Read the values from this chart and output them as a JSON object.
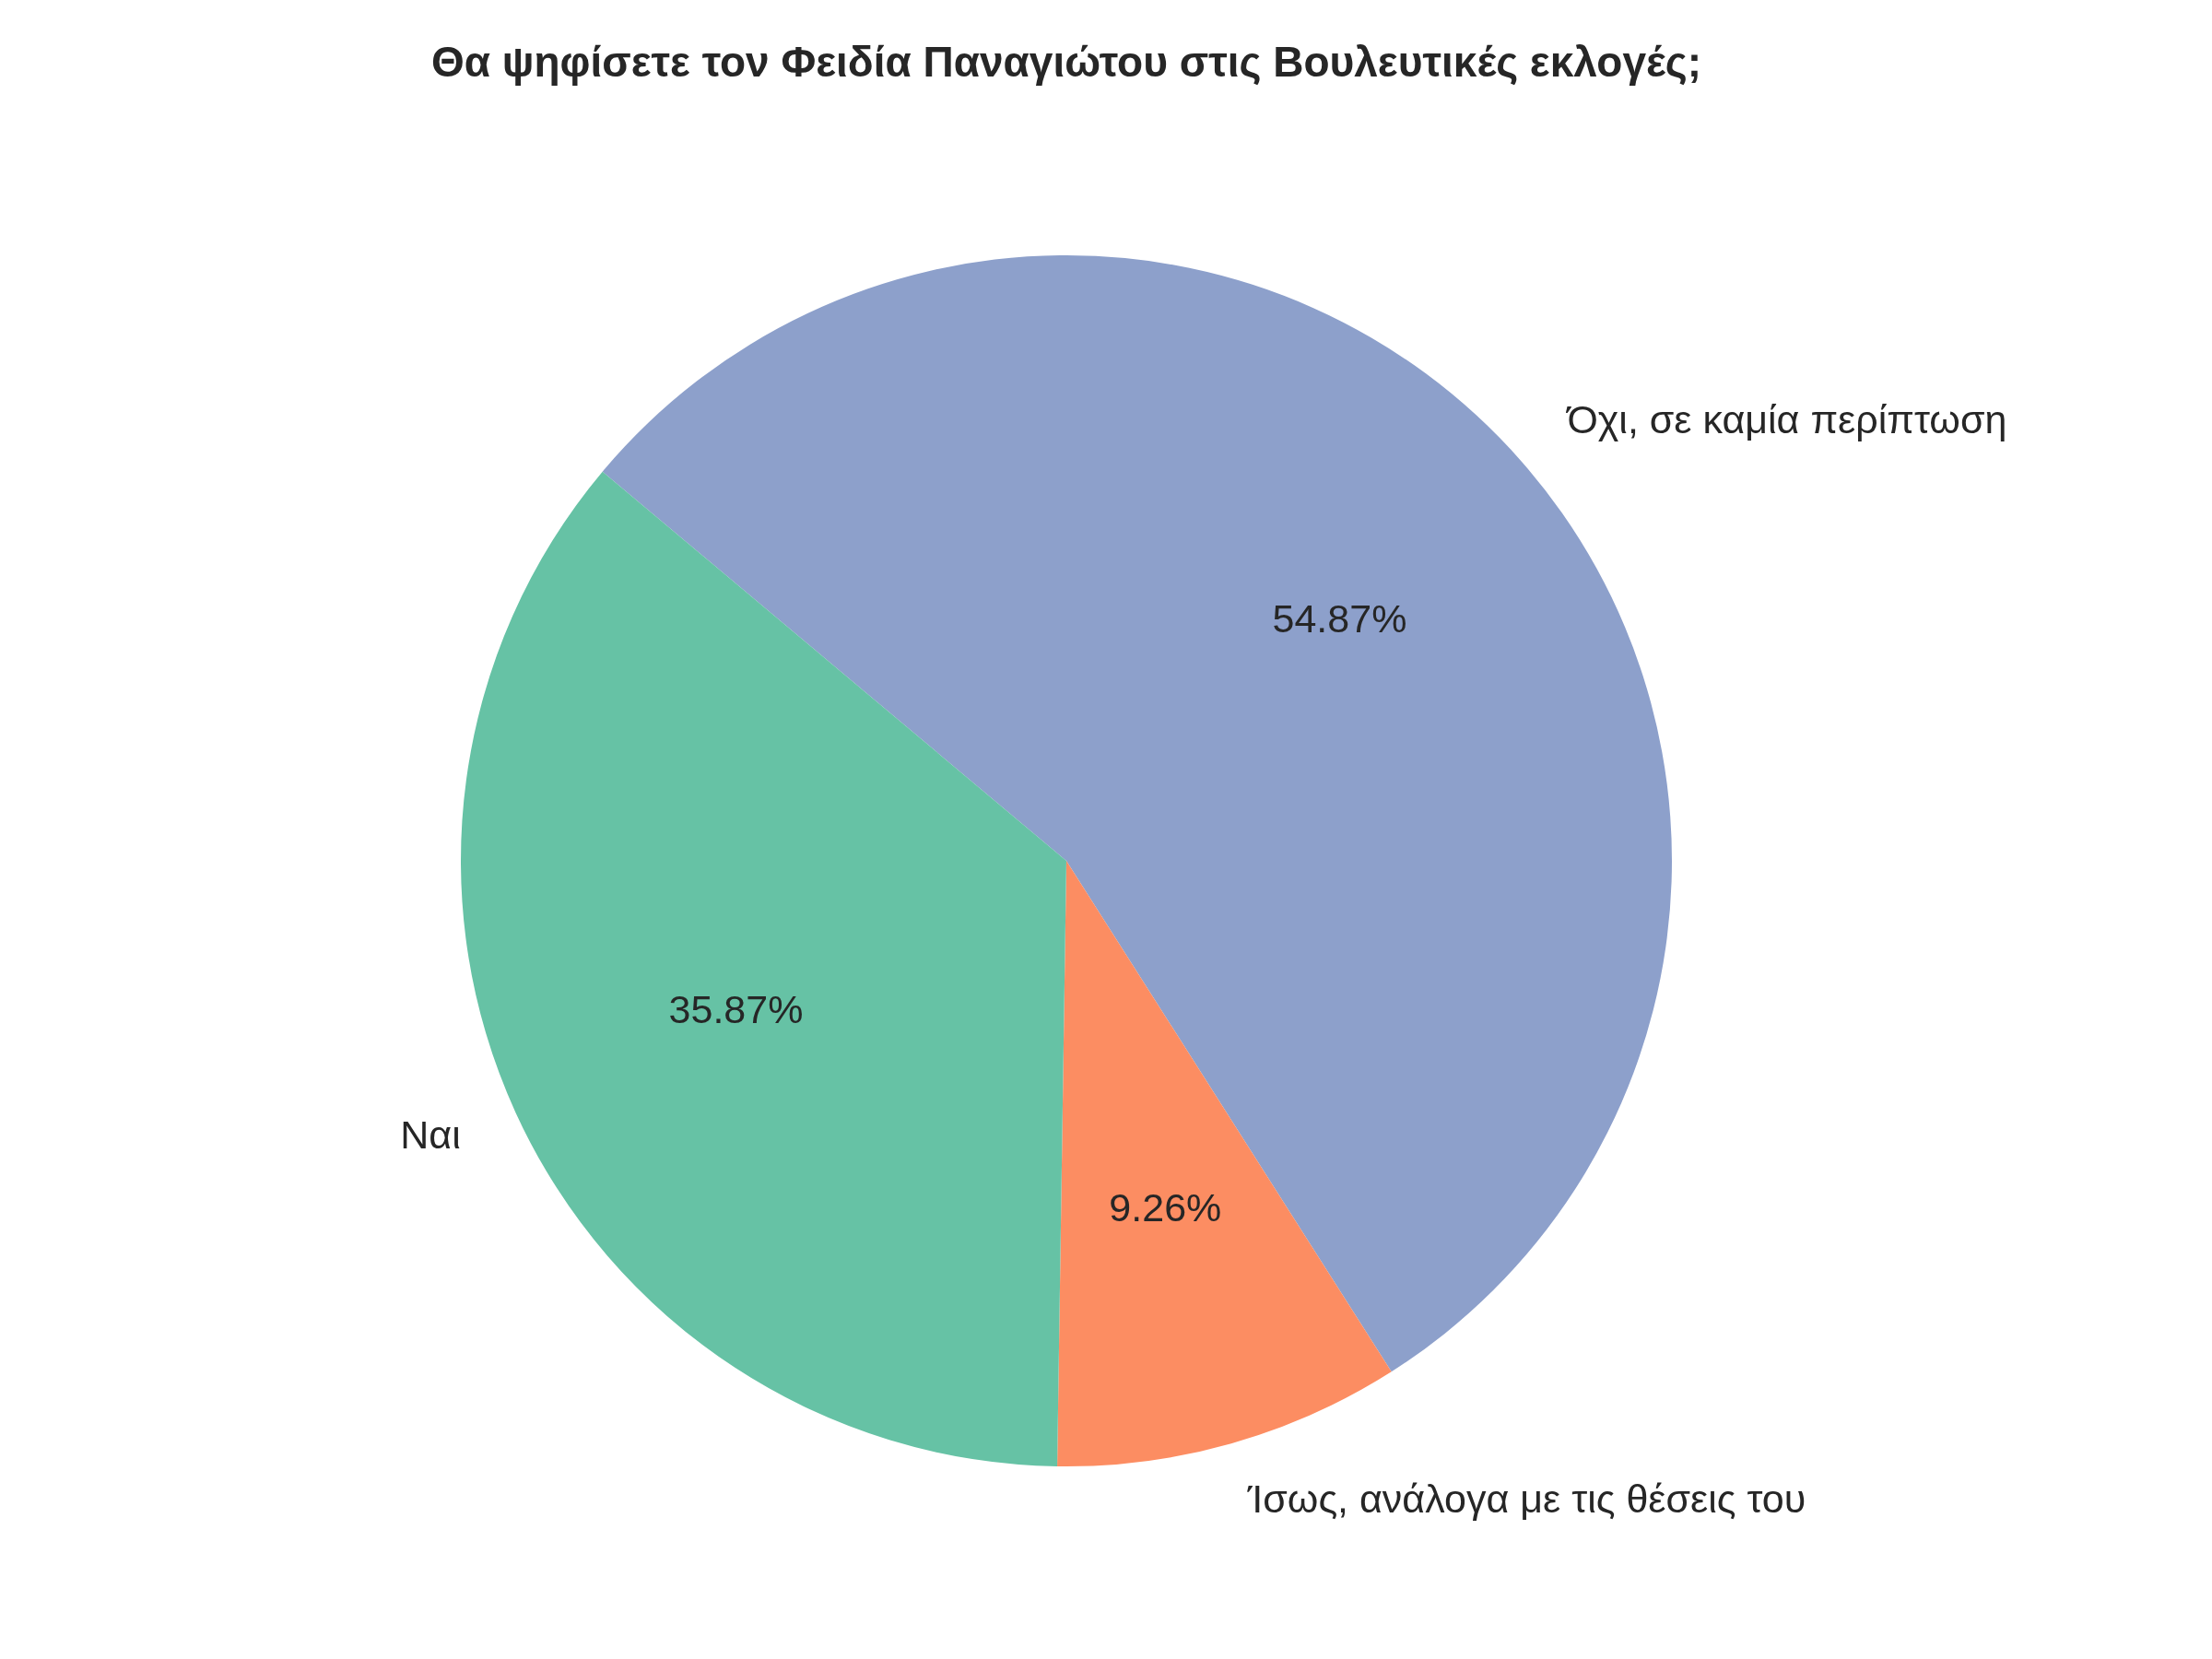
{
  "chart_data": {
    "type": "pie",
    "title": "Θα ψηφίσετε τον Φειδία Παναγιώτου στις Βουλευτικές εκλογές;",
    "categories": [
      "Ναι",
      "Ίσως, ανάλογα με τις θέσεις του",
      "Όχι, σε καμία περίπτωση"
    ],
    "values": [
      35.87,
      9.26,
      54.87
    ],
    "colors": [
      "#66c2a5",
      "#fc8d62",
      "#8da0cb"
    ],
    "value_labels": [
      "35.87%",
      "9.26%",
      "54.87%"
    ],
    "legend": false
  }
}
